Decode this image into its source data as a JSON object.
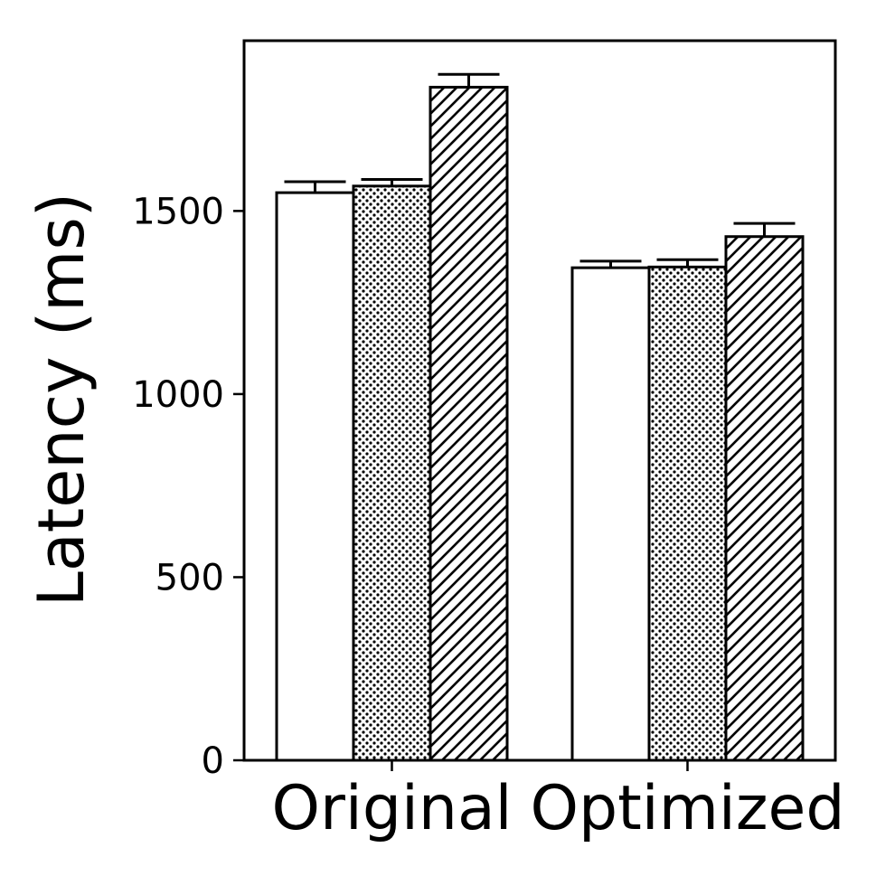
{
  "chart_data": {
    "type": "bar",
    "title": "",
    "xlabel": "",
    "ylabel": "Latency (ms)",
    "categories": [
      "Original",
      "Optimized"
    ],
    "ylim": [
      0,
      1965
    ],
    "yticks": [
      0,
      500,
      1000,
      1500
    ],
    "grid": false,
    "legend": "none",
    "series": [
      {
        "pattern": "plain",
        "values": [
          1550,
          1345
        ],
        "errors": [
          30,
          18
        ]
      },
      {
        "pattern": "dots",
        "values": [
          1568,
          1347
        ],
        "errors": [
          18,
          20
        ]
      },
      {
        "pattern": "hatch",
        "values": [
          1838,
          1430
        ],
        "errors": [
          35,
          36
        ]
      }
    ]
  }
}
